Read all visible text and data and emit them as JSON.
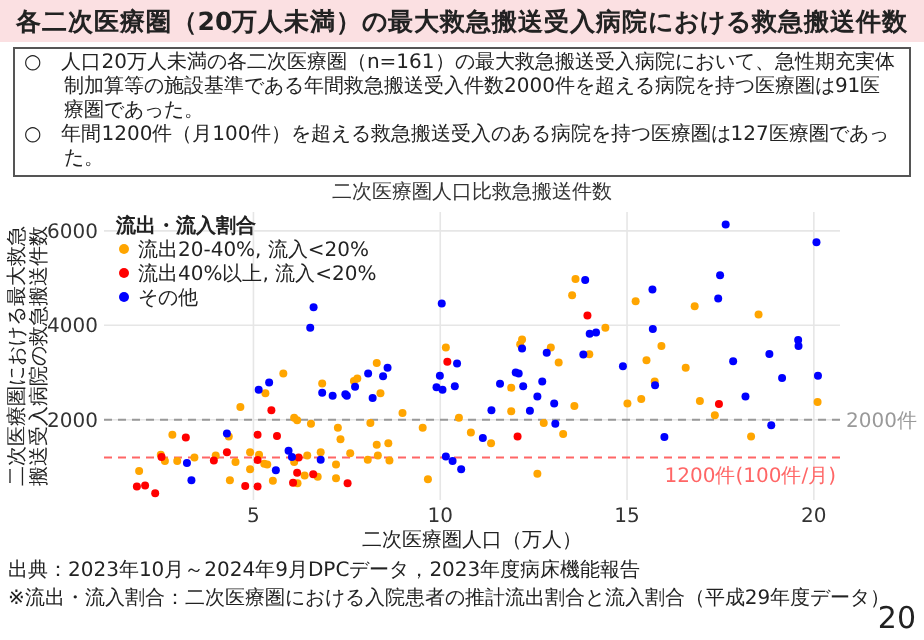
{
  "chart_data": {
    "type": "scatter",
    "title": "各二次医療圏（20万人未満）の最大救急搬送受入病院における救急搬送件数",
    "subtitle": "二次医療圏人口比救急搬送件数",
    "xlabel": "二次医療圏人口（万人）",
    "ylabel": "二次医療圏における最大救急搬送受入病院の救急搬送件数",
    "legend_title": "流出・流入割合",
    "annotations": [
      "○　人口20万人未満の各二次医療圏（n=161）の最大救急搬送受入病院において、急性期充実体制加算等の施設基準である年間救急搬送受入件数2000件を超える病院を持つ医療圏は91医療圏であった。",
      "○　年間1200件（月100件）を超える救急搬送受入のある病院を持つ医療圏は127医療圏であった。",
      "出典：2023年10月～2024年9月DPCデータ，2023年度病床機能報告",
      "※流出・流入割合：二次医療圏における入院患者の推計流出割合と流入割合（平成29年度データ）",
      "20"
    ],
    "series": [
      {
        "name": "流出20-40%, 流入<20%",
        "color": "#ffa500",
        "x": [
          5.32,
          5.8,
          6.84,
          7.69,
          7.78,
          8.3,
          8.4,
          10.15,
          13.62,
          13.53,
          15.23,
          16.81,
          18.52,
          14.42,
          15.92,
          12.19,
          12.14,
          12.96,
          13.17,
          13.99,
          15.52,
          16.57,
          15.74,
          11.9,
          15.38,
          11.9,
          13.59,
          15.01,
          16.95,
          17.35,
          20.1,
          10.5,
          10.82,
          11.36,
          12.77,
          13.29,
          18.32,
          12.6,
          4.65,
          6.09,
          6.17,
          6.54,
          7.26,
          8.13,
          8.99,
          9.53,
          2.83,
          4.34,
          7.33,
          8.3,
          8.61,
          2.52,
          2.63,
          2.96,
          3.42,
          3.99,
          4.52,
          4.91,
          5.15,
          5.29,
          5.37,
          6.09,
          6.44,
          6.8,
          7.21,
          7.59,
          6.37,
          4.91,
          7.21,
          8.33,
          8.64,
          8.06,
          1.94,
          4.37,
          5.52,
          6.18,
          6.72,
          9.67
        ],
        "values": [
          2560,
          2980,
          2770,
          2820,
          2875,
          3200,
          2560,
          3530,
          4980,
          4635,
          4510,
          4405,
          4230,
          3950,
          3560,
          3700,
          3600,
          3530,
          3210,
          3385,
          3260,
          3100,
          2810,
          2680,
          2440,
          2180,
          2290,
          2345,
          2395,
          2095,
          2375,
          2040,
          1730,
          1500,
          1930,
          1700,
          1645,
          855,
          2270,
          2040,
          1990,
          1915,
          1830,
          1930,
          2145,
          1830,
          1680,
          1645,
          1585,
          1470,
          1500,
          1260,
          1125,
          1125,
          1200,
          1240,
          1105,
          1310,
          1260,
          1070,
          1050,
          1105,
          1240,
          1310,
          1050,
          1290,
          820,
          950,
          760,
          1240,
          1135,
          1155,
          915,
          720,
          710,
          655,
          790,
          740
        ]
      },
      {
        "name": "流出40%以上, 流入<20%",
        "color": "#ff0000",
        "x": [
          10.19,
          13.94,
          17.46,
          12.07,
          5.48,
          3.19,
          5.11,
          5.63,
          4.29,
          2.54,
          3.94,
          5.11,
          6.21,
          6.17,
          6.6,
          6.06,
          7.52,
          1.88,
          2.1,
          2.37,
          4.78,
          5.11
        ],
        "values": [
          3230,
          4210,
          2335,
          1645,
          2200,
          1625,
          1680,
          1655,
          1310,
          1210,
          1135,
          1145,
          1200,
          875,
          845,
          665,
          655,
          585,
          605,
          445,
          595,
          585
        ]
      },
      {
        "name": "その他",
        "color": "#0000ff",
        "x": [
          5.14,
          5.42,
          6.61,
          6.52,
          6.84,
          7.12,
          7.46,
          7.5,
          7.72,
          8.07,
          8.47,
          8.59,
          8.19,
          10.04,
          10.45,
          9.99,
          9.9,
          10.06,
          10.39,
          17.64,
          20.07,
          13.88,
          15.68,
          17.49,
          17.44,
          14.0,
          14.17,
          15.69,
          12.19,
          12.85,
          13.83,
          14.89,
          17.84,
          18.81,
          19.58,
          19.59,
          19.15,
          20.11,
          12.02,
          12.1,
          15.75,
          11.6,
          12.22,
          12.73,
          12.6,
          18.17,
          11.37,
          12.4,
          13.05,
          11.14,
          13.08,
          16.0,
          18.86,
          10.56,
          4.29,
          3.22,
          5.6,
          5.94,
          6.03,
          6.8,
          3.34,
          10.15,
          10.33
        ],
        "values": [
          2635,
          2790,
          4385,
          3950,
          2570,
          2510,
          2540,
          2510,
          2700,
          2980,
          2920,
          3100,
          2460,
          4460,
          3190,
          2930,
          2690,
          2635,
          2710,
          6135,
          5760,
          4960,
          4760,
          5060,
          4570,
          3820,
          3850,
          3920,
          3510,
          3420,
          3380,
          3135,
          3240,
          3395,
          3690,
          3560,
          2885,
          2930,
          3000,
          2980,
          2730,
          2760,
          2710,
          2810,
          2490,
          2490,
          2200,
          2190,
          2345,
          1615,
          1915,
          1635,
          1885,
          950,
          1710,
          1085,
          930,
          1345,
          1210,
          1155,
          720,
          1220,
          1125
        ]
      }
    ],
    "xlim": [
      1,
      20.7
    ],
    "xticks": [
      5,
      10,
      15,
      20
    ],
    "ylim": [
      300,
      6400
    ],
    "yticks": [
      2000,
      4000,
      6000
    ],
    "ref_lines": [
      {
        "axis": "y",
        "value": 2000,
        "label": "2000件",
        "color": "#999999",
        "line_style": "dashed"
      },
      {
        "axis": "y",
        "value": 1200,
        "label": "1200件(100件/月)",
        "color": "#ff6666",
        "line_style": "dashed"
      }
    ],
    "grid": true,
    "legend": "top left",
    "marker": "circle"
  }
}
